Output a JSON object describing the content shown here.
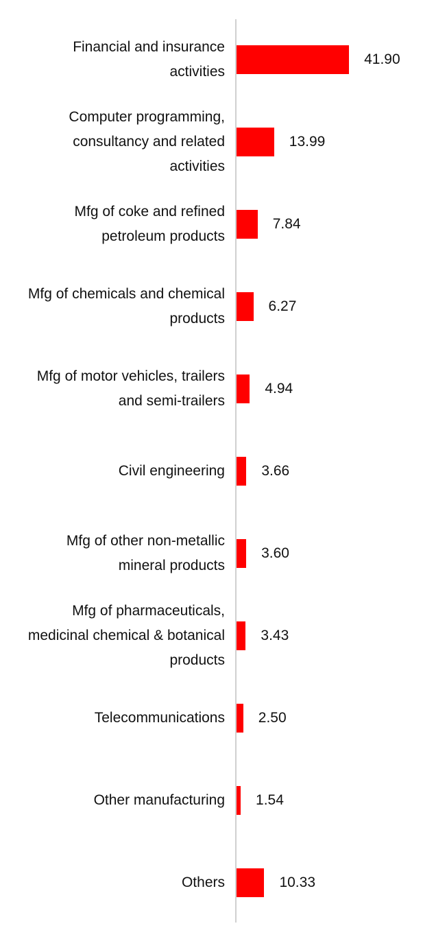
{
  "chart_data": {
    "type": "bar",
    "orientation": "horizontal",
    "color": "#ff0000",
    "categories": [
      "Financial and insurance activities",
      "Computer programming, consultancy and related activities",
      "Mfg of coke and refined petroleum products",
      "Mfg of chemicals and chemical products",
      "Mfg of motor vehicles, trailers and semi-trailers",
      "Civil engineering",
      "Mfg of other non-metallic mineral products",
      "Mfg of pharmaceuticals, medicinal chemical & botanical products",
      "Telecommunications",
      "Other manufacturing",
      "Others"
    ],
    "values": [
      41.9,
      13.99,
      7.84,
      6.27,
      4.94,
      3.66,
      3.6,
      3.43,
      2.5,
      1.54,
      10.33
    ],
    "value_labels": [
      "41.90",
      "13.99",
      "7.84",
      "6.27",
      "4.94",
      "3.66",
      "3.60",
      "3.43",
      "2.50",
      "1.54",
      "10.33"
    ],
    "xlim": [
      0,
      60
    ]
  }
}
